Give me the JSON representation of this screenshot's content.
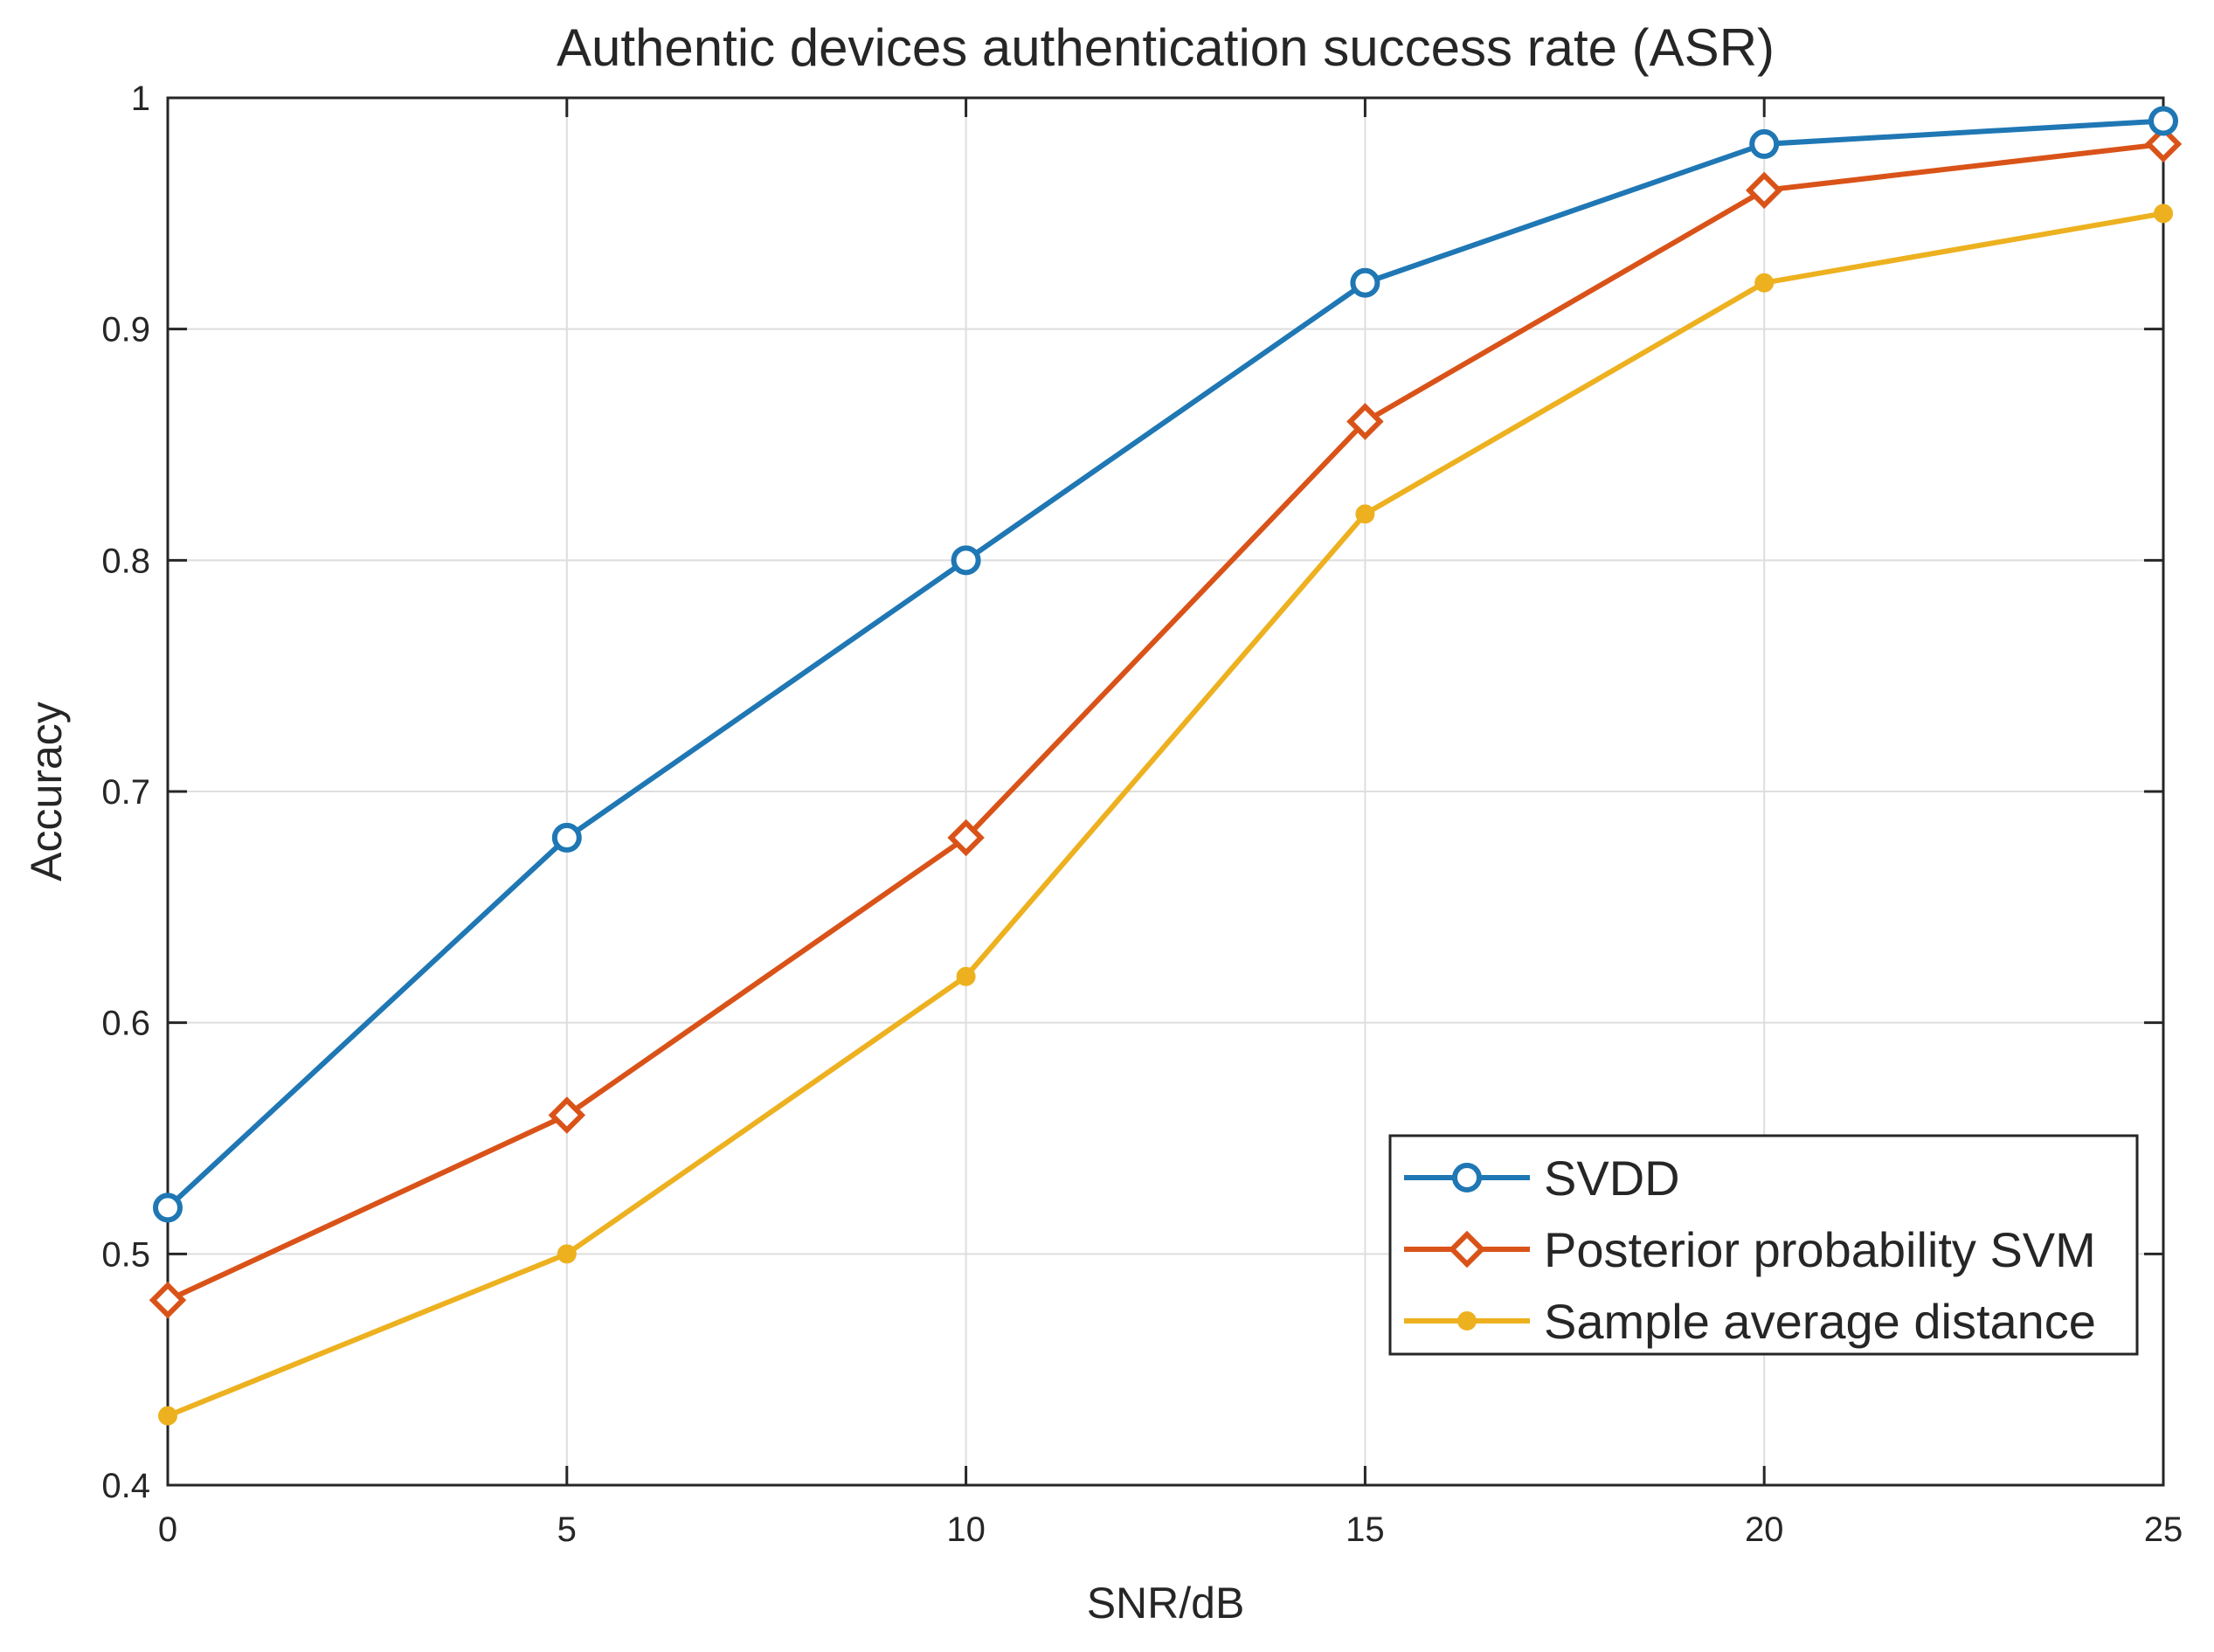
{
  "chart_data": {
    "type": "line",
    "title": "Authentic devices authentication success rate (ASR)",
    "xlabel": "SNR/dB",
    "ylabel": "Accuracy",
    "x": [
      0,
      5,
      10,
      15,
      20,
      25
    ],
    "xlim": [
      0,
      25
    ],
    "ylim": [
      0.4,
      1
    ],
    "xticks": [
      0,
      5,
      10,
      15,
      20,
      25
    ],
    "yticks": [
      0.4,
      0.5,
      0.6,
      0.7,
      0.8,
      0.9,
      1
    ],
    "xtick_labels": [
      "0",
      "5",
      "10",
      "15",
      "20",
      "25"
    ],
    "ytick_labels": [
      "0.4",
      "0.5",
      "0.6",
      "0.7",
      "0.8",
      "0.9",
      "1"
    ],
    "grid": true,
    "legend_position": "bottom-right",
    "series": [
      {
        "name": "SVDD",
        "values": [
          0.52,
          0.68,
          0.8,
          0.92,
          0.98,
          0.99
        ],
        "color": "#1f77b4",
        "marker": "circle"
      },
      {
        "name": "Posterior probability SVM",
        "values": [
          0.48,
          0.56,
          0.68,
          0.86,
          0.96,
          0.98
        ],
        "color": "#d95319",
        "marker": "diamond"
      },
      {
        "name": "Sample average distance",
        "values": [
          0.43,
          0.5,
          0.62,
          0.82,
          0.92,
          0.95
        ],
        "color": "#edb120",
        "marker": "dot"
      }
    ]
  }
}
